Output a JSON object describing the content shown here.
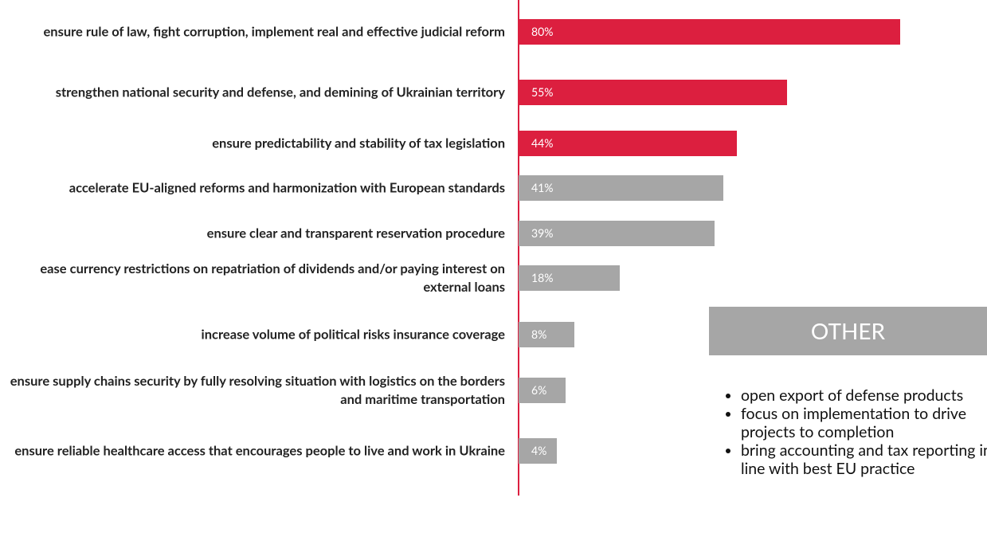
{
  "chart_data": {
    "type": "bar",
    "orientation": "horizontal",
    "categories": [
      "ensure rule of law, fight corruption, implement real and effective judicial reform",
      "strengthen national security and defense, and demining of Ukrainian territory",
      "ensure predictability and stability of tax legislation",
      "accelerate EU-aligned reforms and harmonization with European standards",
      "ensure clear and transparent reservation procedure",
      "ease currency restrictions on repatriation of dividends and/or paying interest on external loans",
      "increase volume of political risks insurance coverage",
      "ensure supply chains security by fully resolving situation with logistics on the borders and maritime transportation",
      "ensure reliable healthcare access that encourages people to live and work in Ukraine"
    ],
    "values": [
      80,
      55,
      44,
      41,
      39,
      18,
      8,
      6,
      4
    ],
    "value_labels": [
      "80%",
      "55%",
      "44%",
      "41%",
      "39%",
      "18%",
      "8%",
      "6%",
      "4%"
    ],
    "colors": [
      "#dc1f3f",
      "#dc1f3f",
      "#dc1f3f",
      "#a6a6a6",
      "#a6a6a6",
      "#a6a6a6",
      "#a6a6a6",
      "#a6a6a6",
      "#a6a6a6"
    ]
  },
  "other": {
    "title": "OTHER",
    "items": [
      "open export of defense products",
      "focus on implementation to drive projects to completion",
      "bring accounting and tax reporting in line with best EU practice"
    ]
  }
}
